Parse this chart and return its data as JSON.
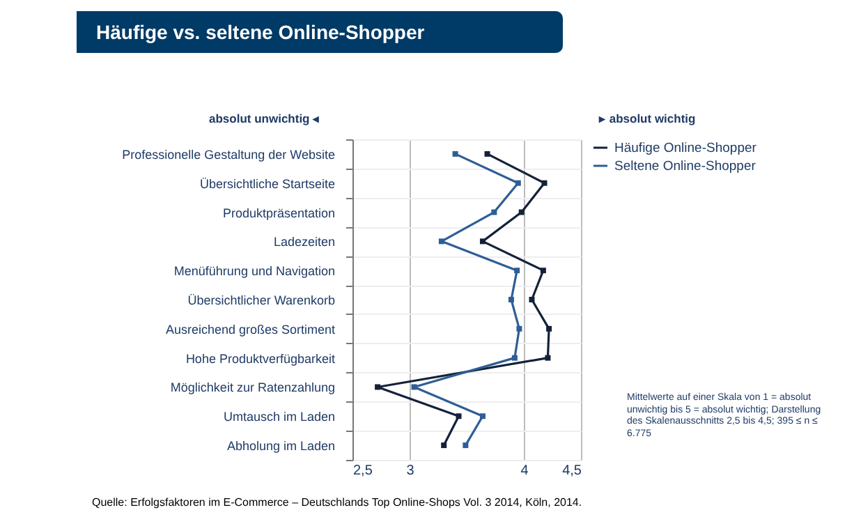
{
  "chart_data": {
    "type": "line",
    "title": "Häufige vs. seltene Online-Shopper",
    "categories": [
      "Professionelle Gestaltung der Website",
      "Übersichtliche Startseite",
      "Produktpräsentation",
      "Ladezeiten",
      "Menüführung und Navigation",
      "Übersichtlicher Warenkorb",
      "Ausreichend großes Sortiment",
      "Hohe Produktverfügbarkeit",
      "Möglichkeit zur Ratenzahlung",
      "Umtausch im Laden",
      "Abholung im Laden"
    ],
    "orientation": "horizontal",
    "series": [
      {
        "name": "Häufige Online-Shopper",
        "color": "#14213a",
        "values": [
          3.68,
          4.18,
          3.98,
          3.64,
          4.17,
          4.07,
          4.22,
          4.21,
          2.72,
          3.43,
          3.3
        ]
      },
      {
        "name": "Seltene Online-Shopper",
        "color": "#2e5e96",
        "values": [
          3.4,
          3.95,
          3.74,
          3.28,
          3.94,
          3.89,
          3.96,
          3.92,
          3.04,
          3.64,
          3.49
        ]
      }
    ],
    "xlim": [
      2.5,
      4.5
    ],
    "xticks": [
      {
        "value": 2.5,
        "label": "2,5"
      },
      3,
      4,
      {
        "value": 4.5,
        "label": "4,5"
      }
    ],
    "grid": true,
    "legend": "right",
    "marker": "square",
    "line_style": "solid",
    "annotations": [
      "absolut unwichtig ◂",
      "▸ absolut wichtig",
      "Mittelwerte auf einer Skala von 1 = absolut unwichtig bis 5 = absolut wichtig; Darstellung des Skalenausschnitts 2,5 bis 4,5; 395 ≤ n ≤ 6.775",
      "Quelle: Erfolgsfaktoren im E-Commerce – Deutschlands Top Online-Shops Vol. 3 2014, Köln, 2014."
    ]
  }
}
